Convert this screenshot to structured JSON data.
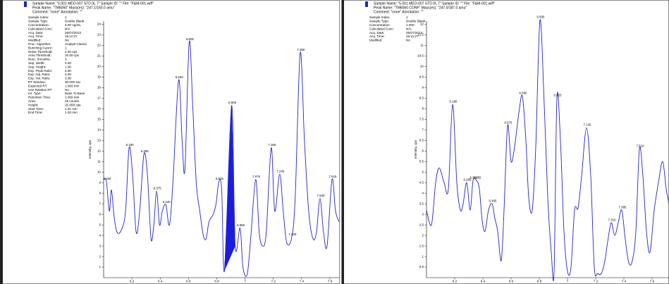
{
  "panels": [
    {
      "header": [
        "Sample Name: \"5.001 MEO-007 STD 0L 7\"   Sample ID: \"\"   File: \"F&M-001.wiff\"",
        "Peak Name: \"TM6060\"   Mass(es): \"247.1/160.0 amu\"",
        "Comment: \"none\"   Annotation: \"\""
      ],
      "info": [
        [
          "Sample Index:",
          "1"
        ],
        [
          "Sample Type:",
          "Double Blank"
        ],
        [
          "Concentration:",
          "0.00 ng/mL"
        ],
        [
          "Calculated Conc:",
          "N/A"
        ],
        [
          "Acq. Date:",
          "25/07/2013"
        ],
        [
          "Acq. Time:",
          "15:11:27"
        ],
        [
          "Modified:",
          "No"
        ],
        [
          "Proc. Algorithm:",
          "Analyst Classic"
        ],
        [
          "Bunching Factor:",
          "1"
        ],
        [
          "Noise Threshold:",
          "2.00 cps"
        ],
        [
          "Area Threshold:",
          "10.00 cps"
        ],
        [
          "Num. Smooths:",
          "3"
        ],
        [
          "Sep. Width:",
          "0.20"
        ],
        [
          "Sep. Height:",
          "1.00"
        ],
        [
          "Exp. Peak Ratio:",
          "5.00"
        ],
        [
          "Exp. Adj. Ratio:",
          "4.00"
        ],
        [
          "Exp. Val. Ratio:",
          "3.00"
        ],
        [
          "RT Window:",
          "30.000 sec"
        ],
        [
          "Expected RT:",
          "1.669 min"
        ],
        [
          "Use Relative RT:",
          "No"
        ],
        [
          "Int. Type:",
          "Base To Base"
        ],
        [
          "Retention Time:",
          "1.009 min"
        ],
        [
          "Area:",
          "45 counts"
        ],
        [
          "Height:",
          "15.658 cps"
        ],
        [
          "Start Time:",
          "1.01 min"
        ],
        [
          "End Time:",
          "1.03 min"
        ]
      ],
      "chart": {
        "type": "line",
        "y_label": "Intensity, cps",
        "color": "#2424c8",
        "highlight_color": "#1c1ce0",
        "xlim": [
          6.0,
          7.665
        ],
        "ylim": [
          0,
          24.3
        ],
        "xticks": [
          6.2,
          6.4,
          6.6,
          6.8,
          7.0,
          7.2,
          7.4,
          7.6
        ],
        "yticks": [
          1,
          2,
          3,
          4,
          5,
          6,
          7,
          8,
          9,
          10,
          11,
          12,
          13,
          14,
          15,
          16,
          17,
          18,
          19,
          20,
          21,
          22,
          23,
          24
        ],
        "signal": {
          "x": [
            6.0,
            6.02,
            6.04,
            6.055,
            6.075,
            6.095,
            6.125,
            6.155,
            6.18,
            6.205,
            6.23,
            6.255,
            6.285,
            6.31,
            6.335,
            6.355,
            6.375,
            6.395,
            6.415,
            6.44,
            6.465,
            6.49,
            6.53,
            6.555,
            6.575,
            6.605,
            6.63,
            6.655,
            6.68,
            6.705,
            6.725,
            6.745,
            6.775,
            6.795,
            6.815,
            6.835,
            6.855,
            6.905,
            6.93,
            6.965,
            6.985,
            7.015,
            7.04,
            7.075,
            7.1,
            7.125,
            7.15,
            7.185,
            7.21,
            7.245,
            7.27,
            7.295,
            7.33,
            7.355,
            7.39,
            7.42,
            7.45,
            7.48,
            7.505,
            7.53,
            7.555,
            7.58,
            7.615,
            7.64,
            7.665
          ],
          "values": [
            9.3,
            9.1,
            6.3,
            8.3,
            5.7,
            4.3,
            4.5,
            6.3,
            12.3,
            9.7,
            4.3,
            6.3,
            11.7,
            9.7,
            3.7,
            5.0,
            8.2,
            5.0,
            6.3,
            6.9,
            5.0,
            9.0,
            18.7,
            13.0,
            10.3,
            22.3,
            16.3,
            9.0,
            6.3,
            4.0,
            3.7,
            5.3,
            6.0,
            7.0,
            9.1,
            8.3,
            0.7,
            16.3,
            3.0,
            4.7,
            1.0,
            0.3,
            3.7,
            9.3,
            4.3,
            3.0,
            4.3,
            12.3,
            6.3,
            9.8,
            6.3,
            3.3,
            3.8,
            7.7,
            21.3,
            13.0,
            6.3,
            3.7,
            4.3,
            7.5,
            4.3,
            3.0,
            9.3,
            6.3,
            5.3
          ]
        },
        "peaks": [
          {
            "value": 6.02,
            "label": "6.020",
            "height": 9.1
          },
          {
            "value": 6.18,
            "label": "6.180",
            "height": 12.3
          },
          {
            "value": 6.285,
            "label": "6.285",
            "height": 11.7
          },
          {
            "value": 6.375,
            "label": "6.375",
            "height": 8.2
          },
          {
            "value": 6.44,
            "label": "6.440",
            "height": 6.9
          },
          {
            "value": 6.53,
            "label": "6.530",
            "height": 18.7
          },
          {
            "value": 6.605,
            "label": "6.605",
            "height": 22.3
          },
          {
            "value": 6.815,
            "label": "6.815",
            "height": 9.1
          },
          {
            "value": 6.905,
            "label": "6.905",
            "height": 16.3
          },
          {
            "value": 6.965,
            "label": "6.965",
            "height": 4.7
          },
          {
            "value": 7.075,
            "label": "7.075",
            "height": 9.3
          },
          {
            "value": 7.185,
            "label": "7.185",
            "height": 12.3
          },
          {
            "value": 7.245,
            "label": "7.245",
            "height": 9.8
          },
          {
            "value": 7.33,
            "label": "7.330",
            "height": 3.8
          },
          {
            "value": 7.39,
            "label": "7.390",
            "height": 21.3
          },
          {
            "value": 7.53,
            "label": "7.530",
            "height": 7.5
          },
          {
            "value": 7.615,
            "label": "7.615",
            "height": 9.3
          }
        ],
        "highlight_peak": 8
      }
    },
    {
      "header": [
        "Sample Name: \"5.001 MEO-007 STD 0L 7\"   Sample ID: \"\"   File: \"F&M-001.wiff\"",
        "Peak Name: \"TM6060 CONF\"   Mass(es): \"247.0/187.0 amu\"",
        "Comment: \"none\"   Annotation: \"\""
      ],
      "info": [
        [
          "Sample Index:",
          "1"
        ],
        [
          "Sample Type:",
          "Double Blank"
        ],
        [
          "Concentration:",
          "1.000"
        ],
        [
          "Calculated Conc:",
          "N/A"
        ],
        [
          "Acq. Date:",
          "25/07/2013"
        ],
        [
          "Acq. Time:",
          "15:11:27"
        ],
        [
          "Modified:",
          "No"
        ]
      ],
      "chart": {
        "type": "line",
        "y_label": "Intensity, cps",
        "color": "#2424c8",
        "xlim": [
          6.0,
          7.72
        ],
        "ylim": [
          0,
          12.15
        ],
        "xticks": [
          6.2,
          6.4,
          6.6,
          6.8,
          7.0,
          7.2,
          7.4,
          7.6
        ],
        "yticks": [
          0.5,
          1,
          1.5,
          2,
          2.5,
          3,
          3.5,
          4,
          4.5,
          5,
          5.5,
          6,
          6.5,
          7,
          7.5,
          8,
          8.5,
          9,
          9.5,
          10,
          10.5,
          11,
          11.5,
          12
        ],
        "signal": {
          "x": [
            6.0,
            6.035,
            6.065,
            6.09,
            6.125,
            6.155,
            6.185,
            6.215,
            6.24,
            6.26,
            6.285,
            6.31,
            6.33,
            6.355,
            6.375,
            6.395,
            6.415,
            6.44,
            6.465,
            6.485,
            6.505,
            6.53,
            6.55,
            6.575,
            6.6,
            6.625,
            6.655,
            6.68,
            6.705,
            6.725,
            6.75,
            6.775,
            6.805,
            6.835,
            6.86,
            6.885,
            6.905,
            6.925,
            6.95,
            6.975,
            7.0,
            7.025,
            7.05,
            7.075,
            7.1,
            7.135,
            7.165,
            7.19,
            7.215,
            7.24,
            7.265,
            7.285,
            7.31,
            7.335,
            7.36,
            7.385,
            7.41,
            7.435,
            7.46,
            7.485,
            7.51,
            7.535,
            7.56,
            7.585,
            7.615,
            7.645,
            7.675,
            7.7,
            7.72
          ],
          "values": [
            3.2,
            2.5,
            4.5,
            5.2,
            4.5,
            4.2,
            8.2,
            4.5,
            3.2,
            3.5,
            4.5,
            3.2,
            4.6,
            4.6,
            4.2,
            2.7,
            2.2,
            3.2,
            3.5,
            2.8,
            2.2,
            0.8,
            3.2,
            7.2,
            5.5,
            6.2,
            7.8,
            8.6,
            6.5,
            3.8,
            3.2,
            6.2,
            12.2,
            8.2,
            3.8,
            1.2,
            0.3,
            8.5,
            6.5,
            2.2,
            0.3,
            0.5,
            3.2,
            3.3,
            4.8,
            7.1,
            4.8,
            0.5,
            0.2,
            0.2,
            0.8,
            1.7,
            2.6,
            2.0,
            2.6,
            3.2,
            1.8,
            0.7,
            0.8,
            2.2,
            6.1,
            4.8,
            2.2,
            1.2,
            3.2,
            4.5,
            5.5,
            4.2,
            3.5
          ]
        },
        "peaks": [
          {
            "value": 6.185,
            "label": "6.185",
            "height": 8.2
          },
          {
            "value": 6.285,
            "label": "6.285",
            "height": 4.5
          },
          {
            "value": 6.33,
            "label": "6.330",
            "height": 4.6
          },
          {
            "value": 6.355,
            "label": "6.355",
            "height": 4.6
          },
          {
            "value": 6.465,
            "label": "6.465",
            "height": 3.5
          },
          {
            "value": 6.575,
            "label": "6.575",
            "height": 7.2
          },
          {
            "value": 6.68,
            "label": "6.680",
            "height": 8.6
          },
          {
            "value": 6.805,
            "label": "6.805",
            "height": 12.2
          },
          {
            "value": 6.925,
            "label": "6.925",
            "height": 8.5
          },
          {
            "value": 7.135,
            "label": "7.135",
            "height": 7.1
          },
          {
            "value": 7.31,
            "label": "7.310",
            "height": 2.6
          },
          {
            "value": 7.385,
            "label": "7.385",
            "height": 3.2
          },
          {
            "value": 7.51,
            "label": "7.510",
            "height": 6.1
          }
        ]
      }
    }
  ]
}
